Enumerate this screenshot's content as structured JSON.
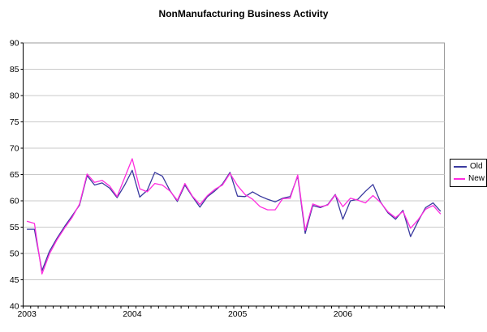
{
  "chart_data": {
    "type": "line",
    "title": "NonManufacturing Business Activity",
    "xlabel": "",
    "ylabel": "",
    "ylim": [
      40,
      90
    ],
    "y_ticks": [
      40,
      45,
      50,
      55,
      60,
      65,
      70,
      75,
      80,
      85,
      90
    ],
    "grid": "horizontal",
    "legend_position": "right",
    "n_categories": 56,
    "x_tick_labels": [
      {
        "label": "2003",
        "category_index": 0
      },
      {
        "label": "2004",
        "category_index": 14
      },
      {
        "label": "2005",
        "category_index": 28
      },
      {
        "label": "2006",
        "category_index": 42
      }
    ],
    "series": [
      {
        "name": "Old",
        "color": "#3A3A9F",
        "values": [
          54.6,
          54.6,
          46.7,
          50.4,
          52.9,
          55.1,
          57.1,
          59.2,
          64.8,
          63.0,
          63.4,
          62.4,
          60.6,
          63.0,
          65.8,
          60.7,
          62.0,
          65.4,
          64.7,
          62.0,
          59.9,
          63.0,
          60.8,
          58.8,
          60.8,
          61.9,
          63.2,
          65.4,
          60.9,
          60.8,
          61.7,
          60.9,
          60.3,
          59.8,
          60.5,
          60.8,
          64.7,
          53.8,
          59.1,
          58.7,
          59.3,
          61.2,
          56.5,
          60.0,
          60.3,
          61.8,
          63.1,
          59.8,
          57.7,
          56.5,
          58.2,
          53.2,
          56.1,
          58.7,
          59.6,
          58.0
        ]
      },
      {
        "name": "New",
        "color": "#FF2CDF",
        "values": [
          56.1,
          55.7,
          46.1,
          49.9,
          52.6,
          54.8,
          56.8,
          59.4,
          65.1,
          63.5,
          63.9,
          62.8,
          60.8,
          64.4,
          68.0,
          62.3,
          61.7,
          63.3,
          63.0,
          61.9,
          60.1,
          63.3,
          60.9,
          59.3,
          61.0,
          62.2,
          63.0,
          65.2,
          62.9,
          61.2,
          60.3,
          58.9,
          58.3,
          58.3,
          60.4,
          60.5,
          64.9,
          54.4,
          59.4,
          58.9,
          59.2,
          61.1,
          58.9,
          60.5,
          60.1,
          59.6,
          61.0,
          59.7,
          57.9,
          56.8,
          58.0,
          54.8,
          56.4,
          58.4,
          59.1,
          57.5
        ]
      }
    ],
    "colors": {
      "gridline": "#C9C9C9",
      "plot_border": "#9B9B9B",
      "axis": "#000000",
      "text": "#000000",
      "background": "#FFFFFF"
    }
  }
}
